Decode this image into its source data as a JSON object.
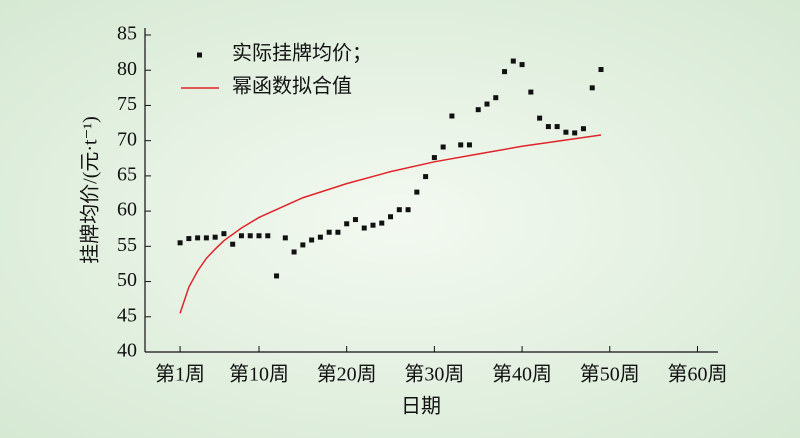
{
  "chart_data": {
    "type": "scatter",
    "x_label": "日期",
    "y_label": "挂牌均价/(元·t⁻¹)",
    "xlim": [
      -3,
      62
    ],
    "ylim": [
      40,
      85
    ],
    "xticks": [
      {
        "value": 1,
        "label": "第1周"
      },
      {
        "value": 10,
        "label": "第10周"
      },
      {
        "value": 20,
        "label": "第20周"
      },
      {
        "value": 30,
        "label": "第30周"
      },
      {
        "value": 40,
        "label": "第40周"
      },
      {
        "value": 50,
        "label": "第50周"
      },
      {
        "value": 60,
        "label": "第60周"
      }
    ],
    "yticks": [
      40,
      45,
      50,
      55,
      60,
      65,
      70,
      75,
      80,
      85
    ],
    "legend": "upper-left",
    "series": [
      {
        "name": "实际挂牌均价；",
        "type": "scatter",
        "color": "#111111",
        "x": [
          1,
          2,
          3,
          4,
          5,
          6,
          7,
          8,
          9,
          10,
          11,
          12,
          13,
          14,
          15,
          16,
          17,
          18,
          19,
          20,
          21,
          22,
          23,
          24,
          25,
          26,
          27,
          28,
          29,
          30,
          31,
          32,
          33,
          34,
          35,
          36,
          37,
          38,
          39,
          40,
          41,
          42,
          43,
          44,
          45,
          46,
          47,
          48,
          49
        ],
        "values": [
          55.5,
          56.1,
          56.2,
          56.2,
          56.3,
          56.8,
          55.3,
          56.5,
          56.5,
          56.5,
          56.5,
          50.8,
          56.2,
          54.2,
          55.2,
          55.9,
          56.3,
          57.0,
          57.0,
          58.2,
          58.8,
          57.6,
          58.0,
          58.3,
          59.2,
          60.2,
          60.2,
          62.7,
          64.9,
          67.6,
          69.1,
          73.5,
          69.4,
          69.4,
          74.4,
          75.2,
          76.1,
          79.8,
          81.3,
          80.8,
          76.9,
          73.2,
          72.0,
          72.0,
          71.2,
          71.1,
          71.7,
          77.5,
          80.1
        ]
      },
      {
        "name": "幂函数拟合值",
        "type": "line",
        "color": "#e0242a",
        "x": [
          1,
          2,
          3,
          4,
          5,
          6,
          8,
          10,
          15,
          20,
          25,
          30,
          35,
          40,
          45,
          49
        ],
        "values": [
          45.5,
          49.2,
          51.5,
          53.3,
          54.6,
          55.8,
          57.6,
          59.1,
          61.9,
          63.9,
          65.6,
          67.0,
          68.1,
          69.2,
          70.1,
          70.8
        ]
      }
    ]
  }
}
